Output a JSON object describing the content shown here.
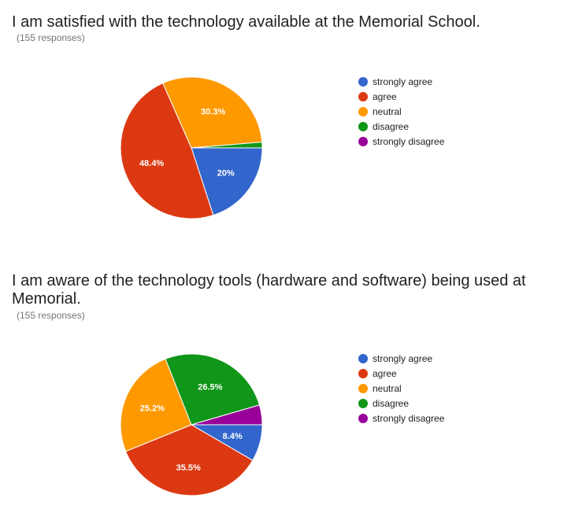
{
  "chart_data": [
    {
      "type": "pie",
      "title": "I am satisfied with the technology available at the Memorial School.",
      "subtitle": "(155 responses)",
      "legend_position": "right",
      "slices": [
        {
          "label": "strongly agree",
          "value": 20.0,
          "display": "20%",
          "color": "#3366cc"
        },
        {
          "label": "agree",
          "value": 48.4,
          "display": "48.4%",
          "color": "#dc3912"
        },
        {
          "label": "neutral",
          "value": 30.3,
          "display": "30.3%",
          "color": "#ff9900"
        },
        {
          "label": "disagree",
          "value": 1.3,
          "display": "",
          "color": "#109618"
        },
        {
          "label": "strongly disagree",
          "value": 0,
          "display": "",
          "color": "#990099"
        }
      ]
    },
    {
      "type": "pie",
      "title": "I am aware of the technology tools (hardware and software) being used at Memorial.",
      "subtitle": "(155 responses)",
      "legend_position": "right",
      "slices": [
        {
          "label": "strongly agree",
          "value": 8.4,
          "display": "8.4%",
          "color": "#3366cc"
        },
        {
          "label": "agree",
          "value": 35.5,
          "display": "35.5%",
          "color": "#dc3912"
        },
        {
          "label": "neutral",
          "value": 25.2,
          "display": "25.2%",
          "color": "#ff9900"
        },
        {
          "label": "disagree",
          "value": 26.5,
          "display": "26.5%",
          "color": "#109618"
        },
        {
          "label": "strongly disagree",
          "value": 4.5,
          "display": "",
          "color": "#990099"
        }
      ]
    }
  ]
}
